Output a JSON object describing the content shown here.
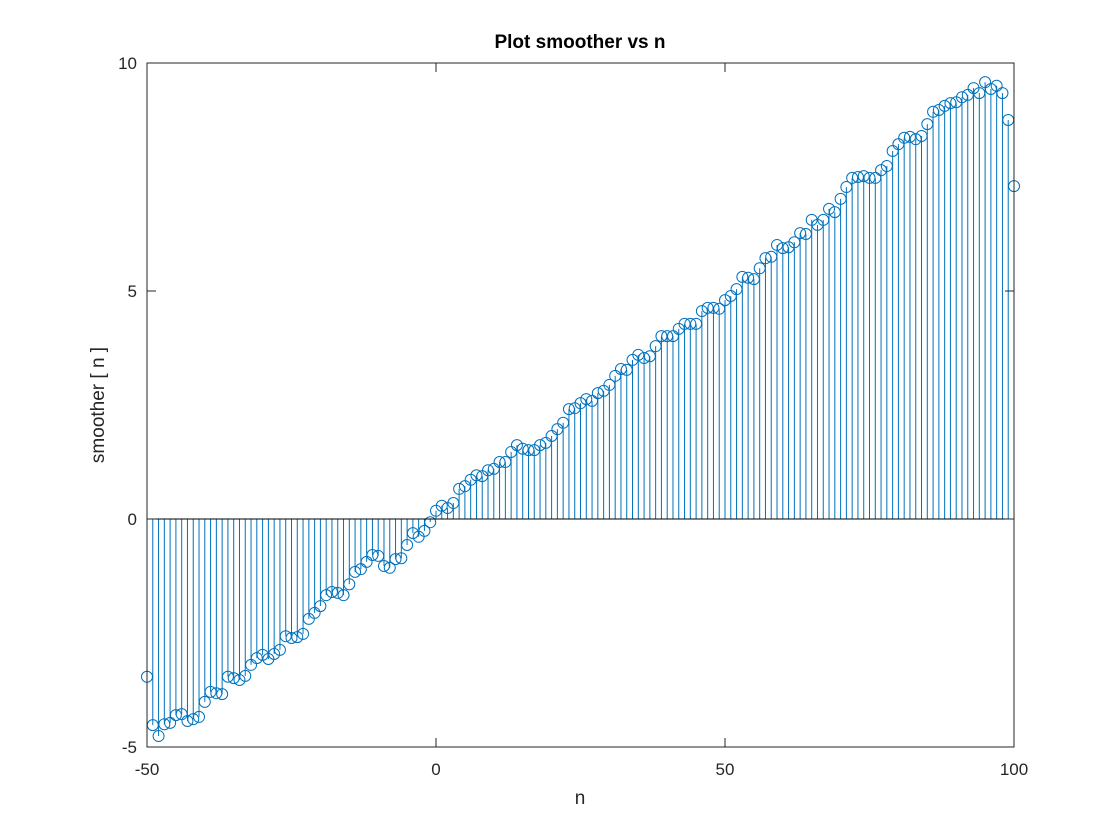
{
  "chart_data": {
    "type": "stem",
    "title": "Plot smoother vs n",
    "x_label": "n",
    "y_label": "smoother [ n ]",
    "xlim": [
      -50,
      100
    ],
    "xticks": [
      -50,
      0,
      50,
      100
    ],
    "ylim": [
      -5,
      10
    ],
    "yticks": [
      -5,
      0,
      5,
      10
    ],
    "series": [
      {
        "color": "#0072bd",
        "x": [
          -50,
          -49,
          -48,
          -47,
          -46,
          -45,
          -44,
          -43,
          -42,
          -41,
          -40,
          -39,
          -38,
          -37,
          -36,
          -35,
          -34,
          -33,
          -32,
          -31,
          -30,
          -29,
          -28,
          -27,
          -26,
          -25,
          -24,
          -23,
          -22,
          -21,
          -20,
          -19,
          -18,
          -17,
          -16,
          -15,
          -14,
          -13,
          -12,
          -11,
          -10,
          -9,
          -8,
          -7,
          -6,
          -5,
          -4,
          -3,
          -2,
          -1,
          0,
          1,
          2,
          3,
          4,
          5,
          6,
          7,
          8,
          9,
          10,
          11,
          12,
          13,
          14,
          15,
          16,
          17,
          18,
          19,
          20,
          21,
          22,
          23,
          24,
          25,
          26,
          27,
          28,
          29,
          30,
          31,
          32,
          33,
          34,
          35,
          36,
          37,
          38,
          39,
          40,
          41,
          42,
          43,
          44,
          45,
          46,
          47,
          48,
          49,
          50,
          51,
          52,
          53,
          54,
          55,
          56,
          57,
          58,
          59,
          60,
          61,
          62,
          63,
          64,
          65,
          66,
          67,
          68,
          69,
          70,
          71,
          72,
          73,
          74,
          75,
          76,
          77,
          78,
          79,
          80,
          81,
          82,
          83,
          84,
          85,
          86,
          87,
          88,
          89,
          90,
          91,
          92,
          93,
          94,
          95,
          96,
          97,
          98,
          99,
          100
        ],
        "values": [
          -3.46,
          -4.52,
          -4.76,
          -4.5,
          -4.47,
          -4.3,
          -4.28,
          -4.43,
          -4.39,
          -4.34,
          -4.01,
          -3.79,
          -3.82,
          -3.84,
          -3.46,
          -3.49,
          -3.53,
          -3.44,
          -3.2,
          -3.05,
          -2.98,
          -3.07,
          -2.96,
          -2.87,
          -2.57,
          -2.61,
          -2.59,
          -2.52,
          -2.19,
          -2.06,
          -1.91,
          -1.67,
          -1.6,
          -1.62,
          -1.67,
          -1.43,
          -1.16,
          -1.1,
          -0.94,
          -0.79,
          -0.81,
          -1.03,
          -1.07,
          -0.88,
          -0.86,
          -0.57,
          -0.31,
          -0.39,
          -0.26,
          -0.07,
          0.18,
          0.29,
          0.24,
          0.35,
          0.66,
          0.72,
          0.86,
          0.96,
          0.94,
          1.07,
          1.1,
          1.25,
          1.25,
          1.47,
          1.62,
          1.54,
          1.51,
          1.51,
          1.62,
          1.67,
          1.82,
          1.97,
          2.11,
          2.41,
          2.43,
          2.54,
          2.63,
          2.59,
          2.76,
          2.81,
          2.94,
          3.14,
          3.29,
          3.27,
          3.49,
          3.6,
          3.53,
          3.57,
          3.79,
          4.01,
          4.01,
          4.01,
          4.17,
          4.28,
          4.28,
          4.28,
          4.56,
          4.63,
          4.63,
          4.61,
          4.8,
          4.89,
          5.04,
          5.31,
          5.29,
          5.26,
          5.5,
          5.72,
          5.75,
          6.01,
          5.94,
          5.96,
          6.07,
          6.27,
          6.25,
          6.56,
          6.45,
          6.56,
          6.8,
          6.73,
          7.02,
          7.28,
          7.48,
          7.5,
          7.52,
          7.48,
          7.48,
          7.65,
          7.74,
          8.07,
          8.22,
          8.36,
          8.38,
          8.33,
          8.4,
          8.66,
          8.93,
          8.97,
          9.06,
          9.12,
          9.14,
          9.25,
          9.3,
          9.45,
          9.34,
          9.58,
          9.43,
          9.5,
          9.34,
          8.75,
          7.3
        ]
      }
    ]
  }
}
